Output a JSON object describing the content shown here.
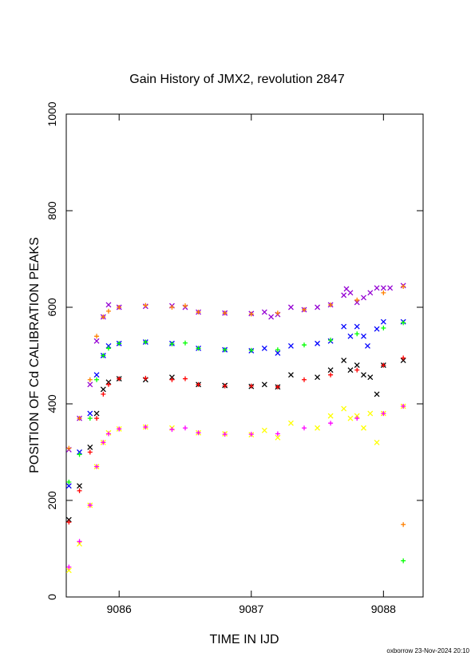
{
  "chart_data": {
    "type": "scatter",
    "title": "Gain History of JMX2, revolution 2847",
    "xlabel": "TIME IN IJD",
    "ylabel": "POSITION OF Cd CALIBRATION PEAKS",
    "xlim": [
      9085.6,
      9088.3
    ],
    "ylim": [
      0,
      1000
    ],
    "xticks": [
      9086,
      9087,
      9088
    ],
    "yticks": [
      0,
      200,
      400,
      600,
      800,
      1000
    ],
    "xtick_labels": [
      "9086",
      "9087",
      "9088"
    ],
    "ytick_labels": [
      "0",
      "200",
      "400",
      "600",
      "800",
      "1000"
    ],
    "grid": false,
    "legend": "none",
    "series": [
      {
        "color": "#9400d3",
        "marker": "x",
        "x": [
          9085.62,
          9085.7,
          9085.78,
          9085.83,
          9085.88,
          9085.92,
          9086.0,
          9086.2,
          9086.4,
          9086.5,
          9086.6,
          9086.8,
          9087.0,
          9087.1,
          9087.15,
          9087.2,
          9087.3,
          9087.4,
          9087.5,
          9087.6,
          9087.7,
          9087.72,
          9087.75,
          9087.8,
          9087.85,
          9087.9,
          9087.95,
          9088.0,
          9088.05,
          9088.15
        ],
        "y": [
          305,
          370,
          440,
          530,
          580,
          605,
          600,
          602,
          603,
          600,
          590,
          588,
          587,
          590,
          580,
          585,
          600,
          595,
          600,
          605,
          625,
          638,
          630,
          610,
          620,
          630,
          640,
          640,
          640,
          645
        ]
      },
      {
        "color": "#ff8000",
        "marker": "+",
        "x": [
          9085.62,
          9085.7,
          9085.78,
          9085.83,
          9085.88,
          9085.92,
          9086.0,
          9086.2,
          9086.4,
          9086.5,
          9086.6,
          9086.8,
          9087.0,
          9087.2,
          9087.4,
          9087.6,
          9087.8,
          9088.0,
          9088.15,
          9088.15
        ],
        "y": [
          308,
          370,
          450,
          540,
          580,
          592,
          600,
          604,
          600,
          603,
          590,
          588,
          586,
          588,
          595,
          605,
          615,
          630,
          643,
          150
        ]
      },
      {
        "color": "#0000ff",
        "marker": "x",
        "x": [
          9085.62,
          9085.7,
          9085.78,
          9085.83,
          9085.88,
          9085.92,
          9086.0,
          9086.2,
          9086.4,
          9086.6,
          9086.8,
          9087.0,
          9087.1,
          9087.2,
          9087.3,
          9087.5,
          9087.6,
          9087.7,
          9087.75,
          9087.8,
          9087.85,
          9087.88,
          9087.95,
          9088.0,
          9088.15
        ],
        "y": [
          230,
          300,
          380,
          460,
          500,
          520,
          525,
          528,
          525,
          515,
          512,
          510,
          515,
          505,
          520,
          525,
          530,
          560,
          540,
          560,
          540,
          520,
          555,
          570,
          570
        ]
      },
      {
        "color": "#00ff00",
        "marker": "+",
        "x": [
          9085.62,
          9085.7,
          9085.78,
          9085.83,
          9085.88,
          9085.92,
          9086.0,
          9086.2,
          9086.4,
          9086.5,
          9086.6,
          9086.8,
          9087.0,
          9087.2,
          9087.4,
          9087.6,
          9087.8,
          9088.0,
          9088.15,
          9088.15
        ],
        "y": [
          238,
          295,
          370,
          450,
          500,
          515,
          525,
          528,
          524,
          526,
          515,
          512,
          511,
          512,
          522,
          532,
          545,
          557,
          568,
          75
        ]
      },
      {
        "color": "#000000",
        "marker": "x",
        "x": [
          9085.62,
          9085.7,
          9085.78,
          9085.83,
          9085.88,
          9085.92,
          9086.0,
          9086.2,
          9086.4,
          9086.6,
          9086.8,
          9087.0,
          9087.1,
          9087.2,
          9087.3,
          9087.5,
          9087.6,
          9087.7,
          9087.75,
          9087.8,
          9087.85,
          9087.9,
          9087.95,
          9088.0,
          9088.15
        ],
        "y": [
          160,
          230,
          310,
          380,
          430,
          445,
          452,
          450,
          455,
          440,
          438,
          436,
          440,
          435,
          460,
          455,
          470,
          490,
          470,
          480,
          460,
          455,
          420,
          480,
          490
        ]
      },
      {
        "color": "#ff0000",
        "marker": "+",
        "x": [
          9085.62,
          9085.7,
          9085.78,
          9085.83,
          9085.88,
          9085.92,
          9086.0,
          9086.2,
          9086.4,
          9086.5,
          9086.6,
          9086.8,
          9087.0,
          9087.2,
          9087.4,
          9087.6,
          9087.8,
          9088.0,
          9088.15
        ],
        "y": [
          155,
          220,
          300,
          370,
          420,
          440,
          452,
          453,
          450,
          452,
          440,
          437,
          437,
          435,
          450,
          460,
          470,
          480,
          495
        ]
      },
      {
        "color": "#ffff00",
        "marker": "x",
        "x": [
          9085.62,
          9085.7,
          9085.78,
          9085.83,
          9085.88,
          9085.92,
          9086.0,
          9086.2,
          9086.4,
          9086.6,
          9086.8,
          9087.0,
          9087.1,
          9087.2,
          9087.3,
          9087.5,
          9087.6,
          9087.7,
          9087.75,
          9087.8,
          9087.85,
          9087.9,
          9087.95,
          9088.0,
          9088.15
        ],
        "y": [
          55,
          110,
          190,
          270,
          320,
          340,
          348,
          352,
          350,
          340,
          338,
          336,
          345,
          330,
          360,
          350,
          375,
          390,
          370,
          375,
          350,
          380,
          320,
          380,
          395
        ]
      },
      {
        "color": "#ff00ff",
        "marker": "+",
        "x": [
          9085.62,
          9085.7,
          9085.78,
          9085.83,
          9085.88,
          9085.92,
          9086.0,
          9086.2,
          9086.4,
          9086.5,
          9086.6,
          9086.8,
          9087.0,
          9087.2,
          9087.4,
          9087.6,
          9087.8,
          9088.0,
          9088.15
        ],
        "y": [
          62,
          115,
          190,
          270,
          320,
          338,
          348,
          352,
          347,
          350,
          340,
          337,
          337,
          338,
          350,
          360,
          370,
          380,
          395
        ]
      }
    ]
  },
  "footer": "oxborrow 23-Nov-2024 20:10"
}
